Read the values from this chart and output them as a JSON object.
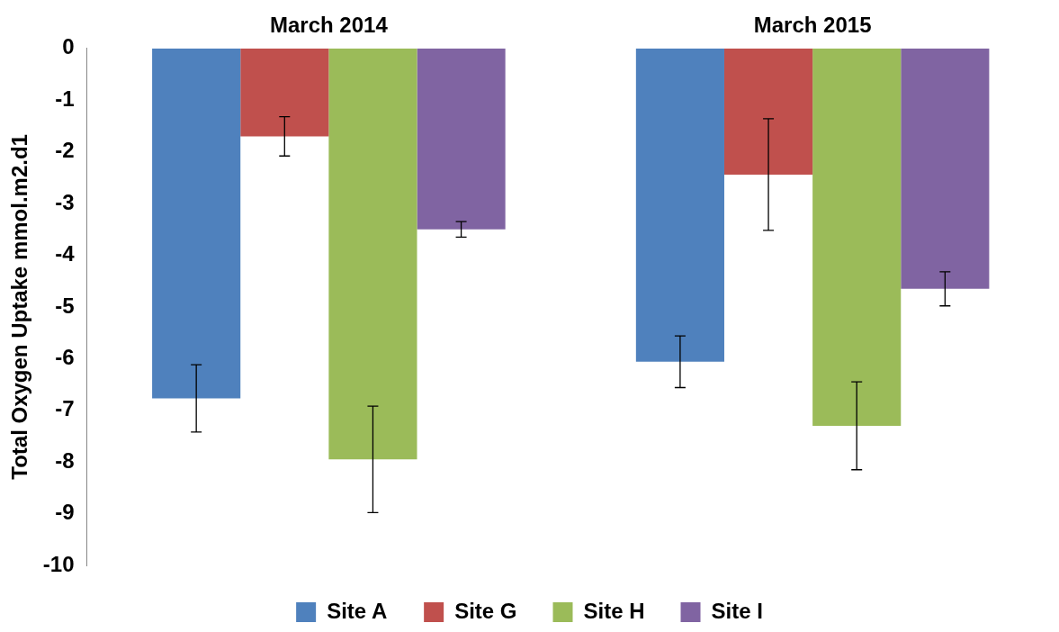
{
  "chart_data": {
    "type": "bar",
    "ylabel": "Total Oxygen Uptake mmol.m2.d1",
    "categories": [
      "March 2014",
      "March 2015"
    ],
    "series": [
      {
        "name": "Site A",
        "color": "#4f81bd",
        "values": [
          -6.77,
          -6.06
        ],
        "errors": [
          0.65,
          0.5
        ]
      },
      {
        "name": "Site G",
        "color": "#c0504d",
        "values": [
          -1.7,
          -2.44
        ],
        "errors": [
          0.38,
          1.08
        ]
      },
      {
        "name": "Site H",
        "color": "#9bbb59",
        "values": [
          -7.95,
          -7.3
        ],
        "errors": [
          1.03,
          0.85
        ]
      },
      {
        "name": "Site I",
        "color": "#8064a2",
        "values": [
          -3.5,
          -4.65
        ],
        "errors": [
          0.15,
          0.33
        ]
      }
    ],
    "ylim": [
      -10,
      0
    ],
    "yticks": [
      0,
      -1,
      -2,
      -3,
      -4,
      -5,
      -6,
      -7,
      -8,
      -9,
      -10
    ],
    "grid": false,
    "legend": "bottom"
  }
}
